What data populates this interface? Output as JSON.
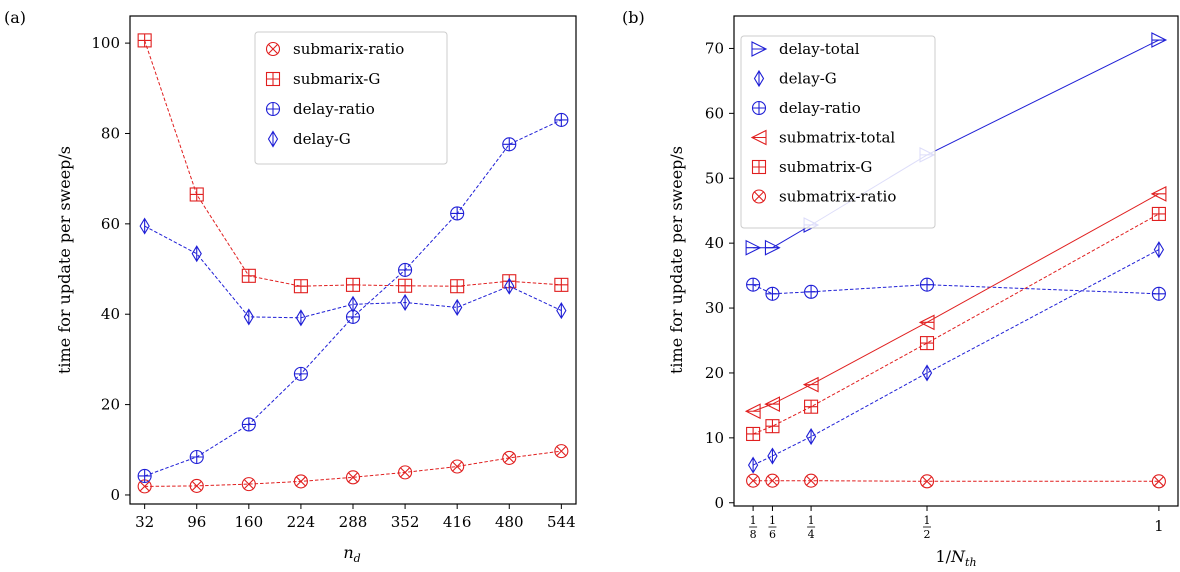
{
  "colors": {
    "red": "#e01f1f",
    "blue": "#1f1fd6",
    "axis": "#000000"
  },
  "chart_data": [
    {
      "panel_label": "(a)",
      "type": "line",
      "xlabel": "n_d",
      "ylabel": "time for update per sweep/s",
      "xlim": [
        14,
        562
      ],
      "ylim": [
        -2,
        106
      ],
      "xticks": [
        32,
        96,
        160,
        224,
        288,
        352,
        416,
        480,
        544
      ],
      "xtick_labels": [
        "32",
        "96",
        "160",
        "224",
        "288",
        "352",
        "416",
        "480",
        "544"
      ],
      "yticks": [
        0,
        20,
        40,
        60,
        80,
        100
      ],
      "ytick_labels": [
        "0",
        "20",
        "40",
        "60",
        "80",
        "100"
      ],
      "legend_position": "top-center",
      "series": [
        {
          "name": "submarix-ratio",
          "color": "red",
          "marker": "circle-x",
          "linestyle": "dashed",
          "x": [
            32,
            96,
            160,
            224,
            288,
            352,
            416,
            480,
            544
          ],
          "values": [
            1.9,
            2.0,
            2.4,
            3.0,
            3.9,
            5.0,
            6.3,
            8.2,
            9.7
          ]
        },
        {
          "name": "submarix-G",
          "color": "red",
          "marker": "square-plus",
          "linestyle": "dashed",
          "x": [
            32,
            96,
            160,
            224,
            288,
            352,
            416,
            480,
            544
          ],
          "values": [
            100.6,
            66.5,
            48.5,
            46.2,
            46.5,
            46.3,
            46.2,
            47.3,
            46.5
          ]
        },
        {
          "name": "delay-ratio",
          "color": "blue",
          "marker": "circle-plus",
          "linestyle": "dashed",
          "x": [
            32,
            96,
            160,
            224,
            288,
            352,
            416,
            480,
            544
          ],
          "values": [
            4.2,
            8.4,
            15.6,
            26.8,
            39.4,
            49.8,
            62.3,
            77.6,
            83.0
          ]
        },
        {
          "name": "delay-G",
          "color": "blue",
          "marker": "thin-diamond",
          "linestyle": "dashed",
          "x": [
            32,
            96,
            160,
            224,
            288,
            352,
            416,
            480,
            544
          ],
          "values": [
            59.5,
            53.4,
            39.4,
            39.2,
            42.2,
            42.6,
            41.5,
            46.2,
            40.8
          ]
        }
      ]
    },
    {
      "panel_label": "(b)",
      "type": "line",
      "xlabel": "1/N_th",
      "ylabel": "time for update per sweep/s",
      "xlim": [
        0.0838,
        1.0412
      ],
      "ylim": [
        -0.5,
        75
      ],
      "xticks": [
        0.125,
        0.1667,
        0.25,
        0.5,
        1.0
      ],
      "xtick_labels": [
        "1/8",
        "1/6",
        "1/4",
        "1/2",
        "1"
      ],
      "yticks": [
        0,
        10,
        20,
        30,
        40,
        50,
        60,
        70
      ],
      "ytick_labels": [
        "0",
        "10",
        "20",
        "30",
        "40",
        "50",
        "60",
        "70"
      ],
      "legend_position": "top-left",
      "series": [
        {
          "name": "delay-total",
          "color": "blue",
          "marker": "triangle-right",
          "linestyle": "solid",
          "x": [
            0.125,
            0.1667,
            0.25,
            0.5,
            1.0
          ],
          "values": [
            39.3,
            39.3,
            42.8,
            53.6,
            71.3
          ]
        },
        {
          "name": "delay-G",
          "color": "blue",
          "marker": "thin-diamond",
          "linestyle": "dashed",
          "x": [
            0.125,
            0.1667,
            0.25,
            0.5,
            1.0
          ],
          "values": [
            5.8,
            7.2,
            10.2,
            20.0,
            39.0
          ]
        },
        {
          "name": "delay-ratio",
          "color": "blue",
          "marker": "circle-plus",
          "linestyle": "dashed",
          "x": [
            0.125,
            0.1667,
            0.25,
            0.5,
            1.0
          ],
          "values": [
            33.6,
            32.2,
            32.5,
            33.6,
            32.2
          ]
        },
        {
          "name": "submatrix-total",
          "color": "red",
          "marker": "triangle-left",
          "linestyle": "solid",
          "x": [
            0.125,
            0.1667,
            0.25,
            0.5,
            1.0
          ],
          "values": [
            14.1,
            15.2,
            18.2,
            27.8,
            47.6
          ]
        },
        {
          "name": "submatrix-G",
          "color": "red",
          "marker": "square-plus",
          "linestyle": "dashed",
          "x": [
            0.125,
            0.1667,
            0.25,
            0.5,
            1.0
          ],
          "values": [
            10.6,
            11.8,
            14.8,
            24.6,
            44.5
          ]
        },
        {
          "name": "submatrix-ratio",
          "color": "red",
          "marker": "circle-x",
          "linestyle": "dashed",
          "x": [
            0.125,
            0.1667,
            0.25,
            0.5,
            1.0
          ],
          "values": [
            3.4,
            3.4,
            3.4,
            3.3,
            3.3
          ]
        }
      ]
    }
  ]
}
